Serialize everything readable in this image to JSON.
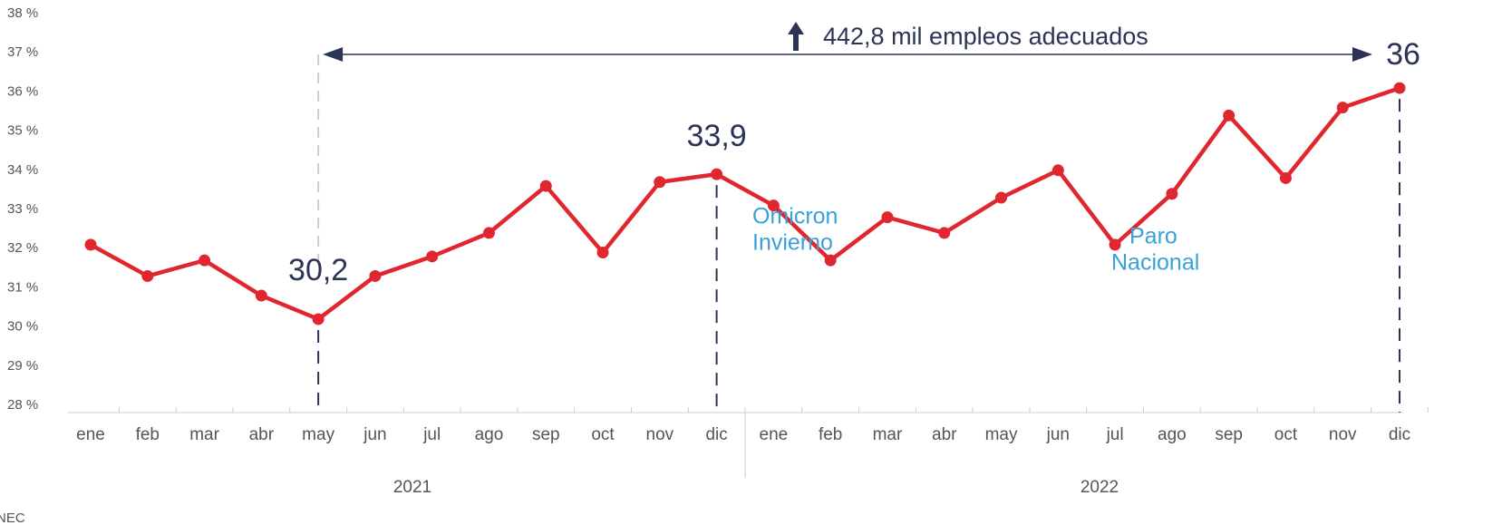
{
  "chart_data": {
    "type": "line",
    "categories": [
      "ene",
      "feb",
      "mar",
      "abr",
      "may",
      "jun",
      "jul",
      "ago",
      "sep",
      "oct",
      "nov",
      "dic",
      "ene",
      "feb",
      "mar",
      "abr",
      "may",
      "jun",
      "jul",
      "ago",
      "sep",
      "oct",
      "nov",
      "dic"
    ],
    "year_labels": [
      "2021",
      "2022"
    ],
    "series": [
      {
        "color": "#e0262f",
        "values": [
          32.1,
          31.3,
          31.7,
          30.8,
          30.2,
          31.3,
          31.8,
          32.4,
          33.6,
          31.9,
          33.7,
          33.9,
          33.1,
          31.7,
          32.8,
          32.4,
          33.3,
          34.0,
          32.1,
          33.4,
          35.4,
          33.8,
          35.6,
          36.1
        ]
      }
    ],
    "ylim": [
      28,
      38
    ],
    "yticks": [
      {
        "value": 28,
        "label": "28 %"
      },
      {
        "value": 29,
        "label": "29 %"
      },
      {
        "value": 30,
        "label": "30 %"
      },
      {
        "value": 31,
        "label": "31 %"
      },
      {
        "value": 32,
        "label": "32 %"
      },
      {
        "value": 33,
        "label": "33 %"
      },
      {
        "value": 34,
        "label": "34 %"
      },
      {
        "value": 35,
        "label": "35 %"
      },
      {
        "value": 36,
        "label": "36 %"
      },
      {
        "value": 37,
        "label": "37 %"
      },
      {
        "value": 38,
        "label": "38 %"
      }
    ],
    "point_labels": [
      "30,2",
      "33,9",
      "36"
    ],
    "headline": "442,8 mil empleos adecuados",
    "events": [
      [
        "Omicron",
        "Invierno"
      ],
      [
        "Paro",
        "Nacional"
      ]
    ],
    "source": "NEC"
  }
}
